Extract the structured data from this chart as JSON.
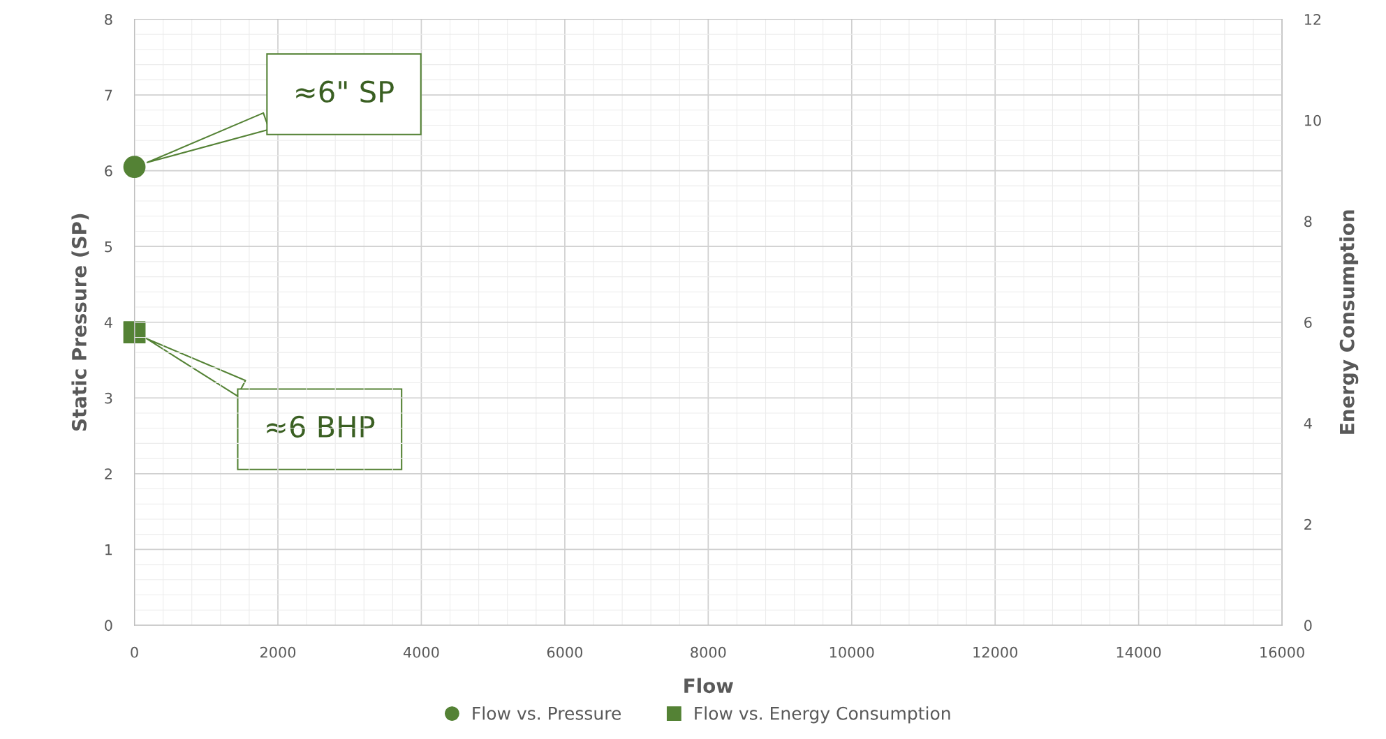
{
  "chart_data": {
    "type": "scatter",
    "xlabel": "Flow",
    "ylabel": "Static Pressure (SP)",
    "y2label": "Energy Consumption",
    "xlim": [
      0,
      16000
    ],
    "xticks": [
      0,
      2000,
      4000,
      6000,
      8000,
      10000,
      12000,
      14000,
      16000
    ],
    "ylim": [
      0,
      8
    ],
    "yticks": [
      0,
      1,
      2,
      3,
      4,
      5,
      6,
      7,
      8
    ],
    "y2lim": [
      0,
      12
    ],
    "y2ticks": [
      0,
      2,
      4,
      6,
      8,
      10,
      12
    ],
    "grid": true,
    "legend": "bottom",
    "series": [
      {
        "name": "Flow vs. Pressure",
        "color": "#548235",
        "marker": "circle",
        "x": [
          0
        ],
        "values": [
          6.05
        ]
      },
      {
        "name": "Flow vs. Energy Consumption",
        "color": "#548235",
        "marker": "square",
        "axis": "y2",
        "x": [
          0
        ],
        "values": [
          5.8
        ]
      }
    ],
    "annotations": [
      "≈6\" SP",
      "≈6 BHP"
    ]
  }
}
